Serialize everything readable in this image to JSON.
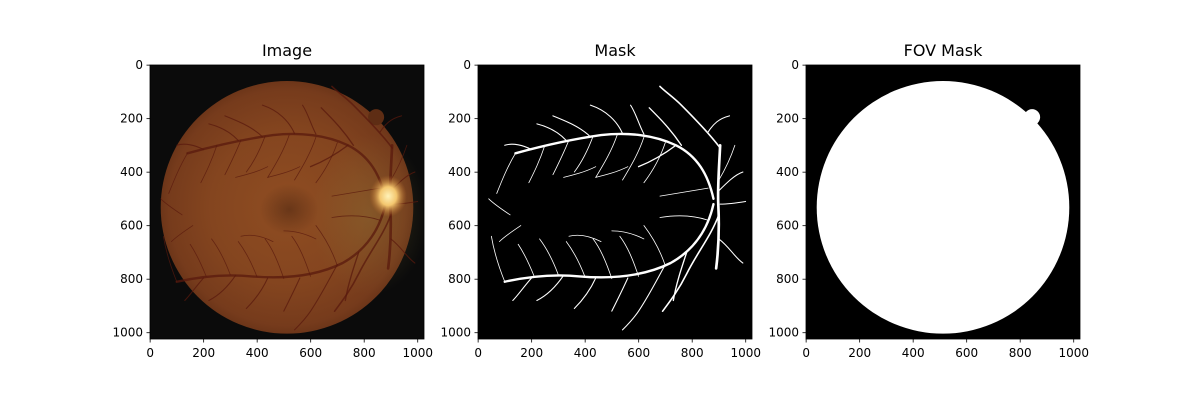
{
  "figure": {
    "background": "#ffffff",
    "panels": [
      {
        "id": "image",
        "title": "Image",
        "kind": "fundus-photo",
        "x_ticks": [
          "0",
          "200",
          "400",
          "600",
          "800",
          "1000"
        ],
        "y_ticks": [
          "0",
          "200",
          "400",
          "600",
          "800",
          "1000"
        ],
        "colors": {
          "background": "#0b0b0b",
          "fundus_center": "#8a4a22",
          "fundus_edge": "#6a3218",
          "optic_disc": "#f6cf7a",
          "vessel": "#5a1a10"
        }
      },
      {
        "id": "mask",
        "title": "Mask",
        "kind": "vessel-mask",
        "x_ticks": [
          "0",
          "200",
          "400",
          "600",
          "800",
          "1000"
        ],
        "y_ticks": [
          "0",
          "200",
          "400",
          "600",
          "800",
          "1000"
        ],
        "colors": {
          "background": "#000000",
          "vessel": "#ffffff"
        }
      },
      {
        "id": "fov",
        "title": "FOV Mask",
        "kind": "fov-mask",
        "x_ticks": [
          "0",
          "200",
          "400",
          "600",
          "800",
          "1000"
        ],
        "y_ticks": [
          "0",
          "200",
          "400",
          "600",
          "800",
          "1000"
        ],
        "colors": {
          "background": "#000000",
          "fov": "#ffffff"
        }
      }
    ],
    "image_size": [
      1024,
      1024
    ]
  }
}
